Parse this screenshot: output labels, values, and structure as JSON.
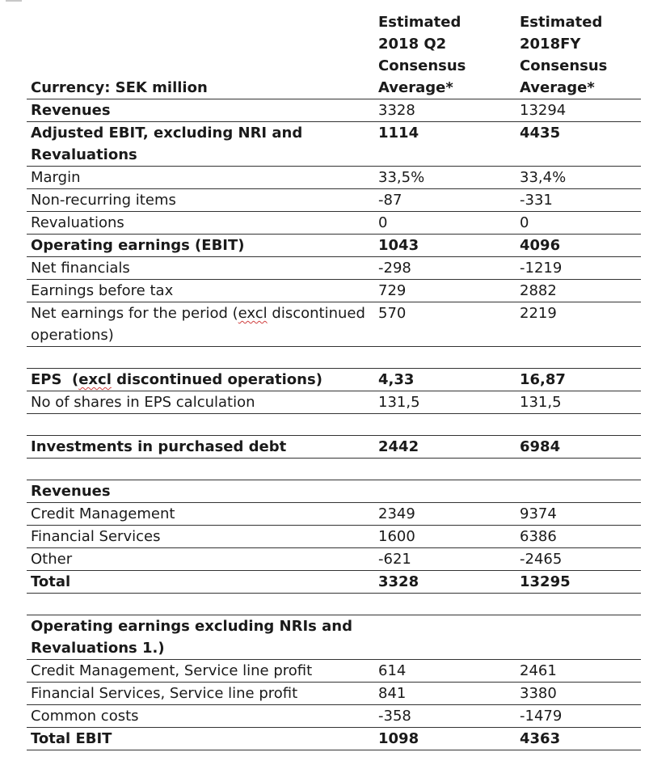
{
  "table": {
    "header": {
      "label": "Currency: SEK million",
      "col_q2": [
        "Estimated",
        "2018 Q2",
        "Consensus",
        "Average*"
      ],
      "col_fy": [
        "Estimated",
        "2018FY",
        "Consensus",
        "Average*"
      ]
    },
    "rows": [
      {
        "label": "Revenues",
        "q2": "3328",
        "fy": "13294",
        "bold_label": true,
        "bold_values": false
      },
      {
        "label": "Adjusted EBIT, excluding NRI and Revaluations",
        "q2": "1114",
        "fy": "4435",
        "bold_label": true,
        "bold_values": true
      },
      {
        "label": "Margin",
        "q2": "33,5%",
        "fy": "33,4%"
      },
      {
        "label": "Non-recurring items",
        "q2": "-87",
        "fy": "-331"
      },
      {
        "label": "Revaluations",
        "q2": "0",
        "fy": "0"
      },
      {
        "label": "Operating earnings (EBIT)",
        "q2": "1043",
        "fy": "4096",
        "bold_label": true,
        "bold_values": true
      },
      {
        "label": "Net financials",
        "q2": "-298",
        "fy": "-1219"
      },
      {
        "label": "Earnings before tax",
        "q2": "729",
        "fy": "2882"
      },
      {
        "label_pre": "Net earnings for the period (",
        "label_sq": "excl",
        "label_post": " discontinued operations)",
        "q2": "570",
        "fy": "2219"
      },
      {
        "label_pre": "EPS  (",
        "label_sq": "excl",
        "label_post": " discontinued operations)",
        "q2": "4,33",
        "fy": "16,87",
        "bold_label": true,
        "bold_values": true
      },
      {
        "label": "No of shares in EPS calculation",
        "q2": "131,5",
        "fy": "131,5"
      },
      {
        "label": "Investments in purchased debt",
        "q2": "2442",
        "fy": "6984",
        "bold_label": true,
        "bold_values": true
      },
      {
        "label": "Revenues",
        "q2": "",
        "fy": "",
        "bold_label": true
      },
      {
        "label": "Credit Management",
        "q2": "2349",
        "fy": "9374"
      },
      {
        "label": "Financial Services",
        "q2": "1600",
        "fy": "6386"
      },
      {
        "label": "Other",
        "q2": "-621",
        "fy": "-2465"
      },
      {
        "label": "Total",
        "q2": "3328",
        "fy": "13295",
        "bold_label": true,
        "bold_values": true
      },
      {
        "label": "Operating earnings excluding NRIs and Revaluations 1.)",
        "q2": "",
        "fy": "",
        "bold_label": true
      },
      {
        "label": "Credit Management, Service line profit",
        "q2": "614",
        "fy": "2461"
      },
      {
        "label": "Financial Services, Service line profit",
        "q2": "841",
        "fy": "3380"
      },
      {
        "label": "Common costs",
        "q2": "-358",
        "fy": "-1479"
      },
      {
        "label": "Total EBIT",
        "q2": "1098",
        "fy": "4363",
        "bold_label": true,
        "bold_values": true
      }
    ]
  }
}
